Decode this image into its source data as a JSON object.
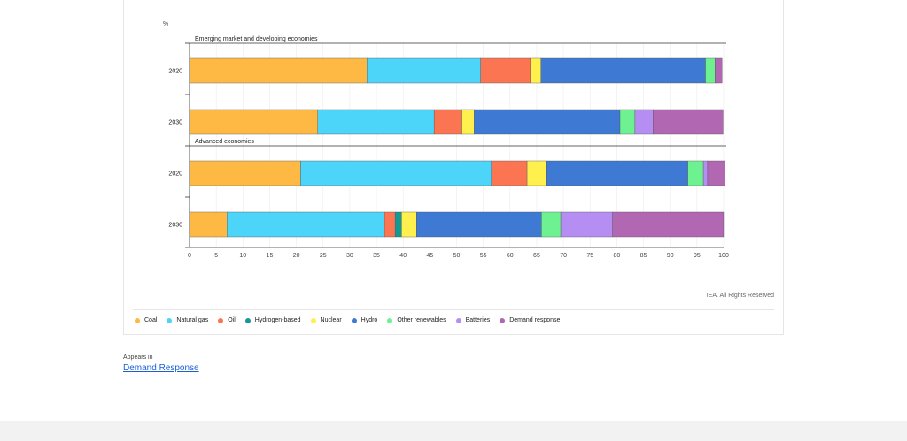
{
  "chart_data": {
    "type": "bar",
    "orientation": "horizontal",
    "stacked": true,
    "unit_label": "%",
    "xlim": [
      0,
      100
    ],
    "x_ticks": [
      "0",
      "5",
      "10",
      "15",
      "20",
      "25",
      "30",
      "35",
      "40",
      "45",
      "50",
      "55",
      "60",
      "65",
      "70",
      "75",
      "80",
      "85",
      "90",
      "95",
      "100"
    ],
    "grid": true,
    "legend_position": "bottom",
    "groups": [
      {
        "title": "Emerging market and developing economies",
        "rows": [
          {
            "label": "2020",
            "values": [
              33.2,
              21.3,
              9.3,
              0,
              2.0,
              30.8,
              1.8,
              0,
              1.3
            ]
          },
          {
            "label": "2030",
            "values": [
              24.0,
              21.8,
              5.2,
              0,
              2.3,
              27.3,
              2.8,
              3.4,
              13.1
            ]
          }
        ]
      },
      {
        "title": "Advanced economies",
        "rows": [
          {
            "label": "2020",
            "values": [
              20.8,
              35.7,
              6.7,
              0,
              3.5,
              26.6,
              2.9,
              0.8,
              3.2
            ]
          },
          {
            "label": "2030",
            "values": [
              7.0,
              29.5,
              2.0,
              1.2,
              2.8,
              23.4,
              3.6,
              9.7,
              20.8
            ]
          }
        ]
      }
    ],
    "series": [
      {
        "name": "Coal",
        "color": "#fdb943"
      },
      {
        "name": "Natural gas",
        "color": "#4cd4f9"
      },
      {
        "name": "Oil",
        "color": "#fc7552"
      },
      {
        "name": "Hydrogen-based",
        "color": "#139a94"
      },
      {
        "name": "Nuclear",
        "color": "#fff04d"
      },
      {
        "name": "Hydro",
        "color": "#3e79d3"
      },
      {
        "name": "Other renewables",
        "color": "#6ef291"
      },
      {
        "name": "Batteries",
        "color": "#b68ef3"
      },
      {
        "name": "Demand response",
        "color": "#b267b2"
      }
    ]
  },
  "copyright": "IEA. All Rights Reserved",
  "appears_in": {
    "label": "Appears in",
    "link_text": "Demand Response"
  }
}
